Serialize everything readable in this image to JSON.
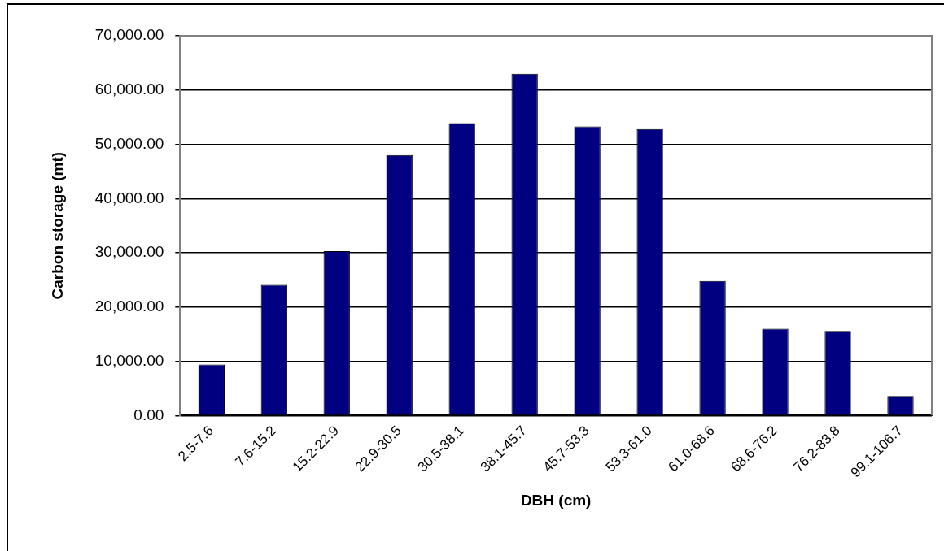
{
  "chart_data": {
    "type": "bar",
    "xlabel": "DBH (cm)",
    "ylabel": "Carbon storage (mt)",
    "categories": [
      "2.5-7.6",
      "7.6-15.2",
      "15.2-22.9",
      "22.9-30.5",
      "30.5-38.1",
      "38.1-45.7",
      "45.7-53.3",
      "53.3-61.0",
      "61.0-68.6",
      "68.6-76.2",
      "76.2-83.8",
      "99.1-106.7"
    ],
    "values": [
      9400,
      24100,
      30300,
      48000,
      53900,
      63000,
      53300,
      52800,
      24800,
      16000,
      15600,
      3600
    ],
    "color": "#000080",
    "ylim": [
      0,
      70000
    ],
    "yticks": [
      {
        "value": 0,
        "label": "0.00"
      },
      {
        "value": 10000,
        "label": "10,000.00"
      },
      {
        "value": 20000,
        "label": "20,000.00"
      },
      {
        "value": 30000,
        "label": "30,000.00"
      },
      {
        "value": 40000,
        "label": "40,000.00"
      },
      {
        "value": 50000,
        "label": "50,000.00"
      },
      {
        "value": 60000,
        "label": "60,000.00"
      },
      {
        "value": 70000,
        "label": "70,000.00"
      }
    ],
    "grid": "y",
    "legend": false
  }
}
